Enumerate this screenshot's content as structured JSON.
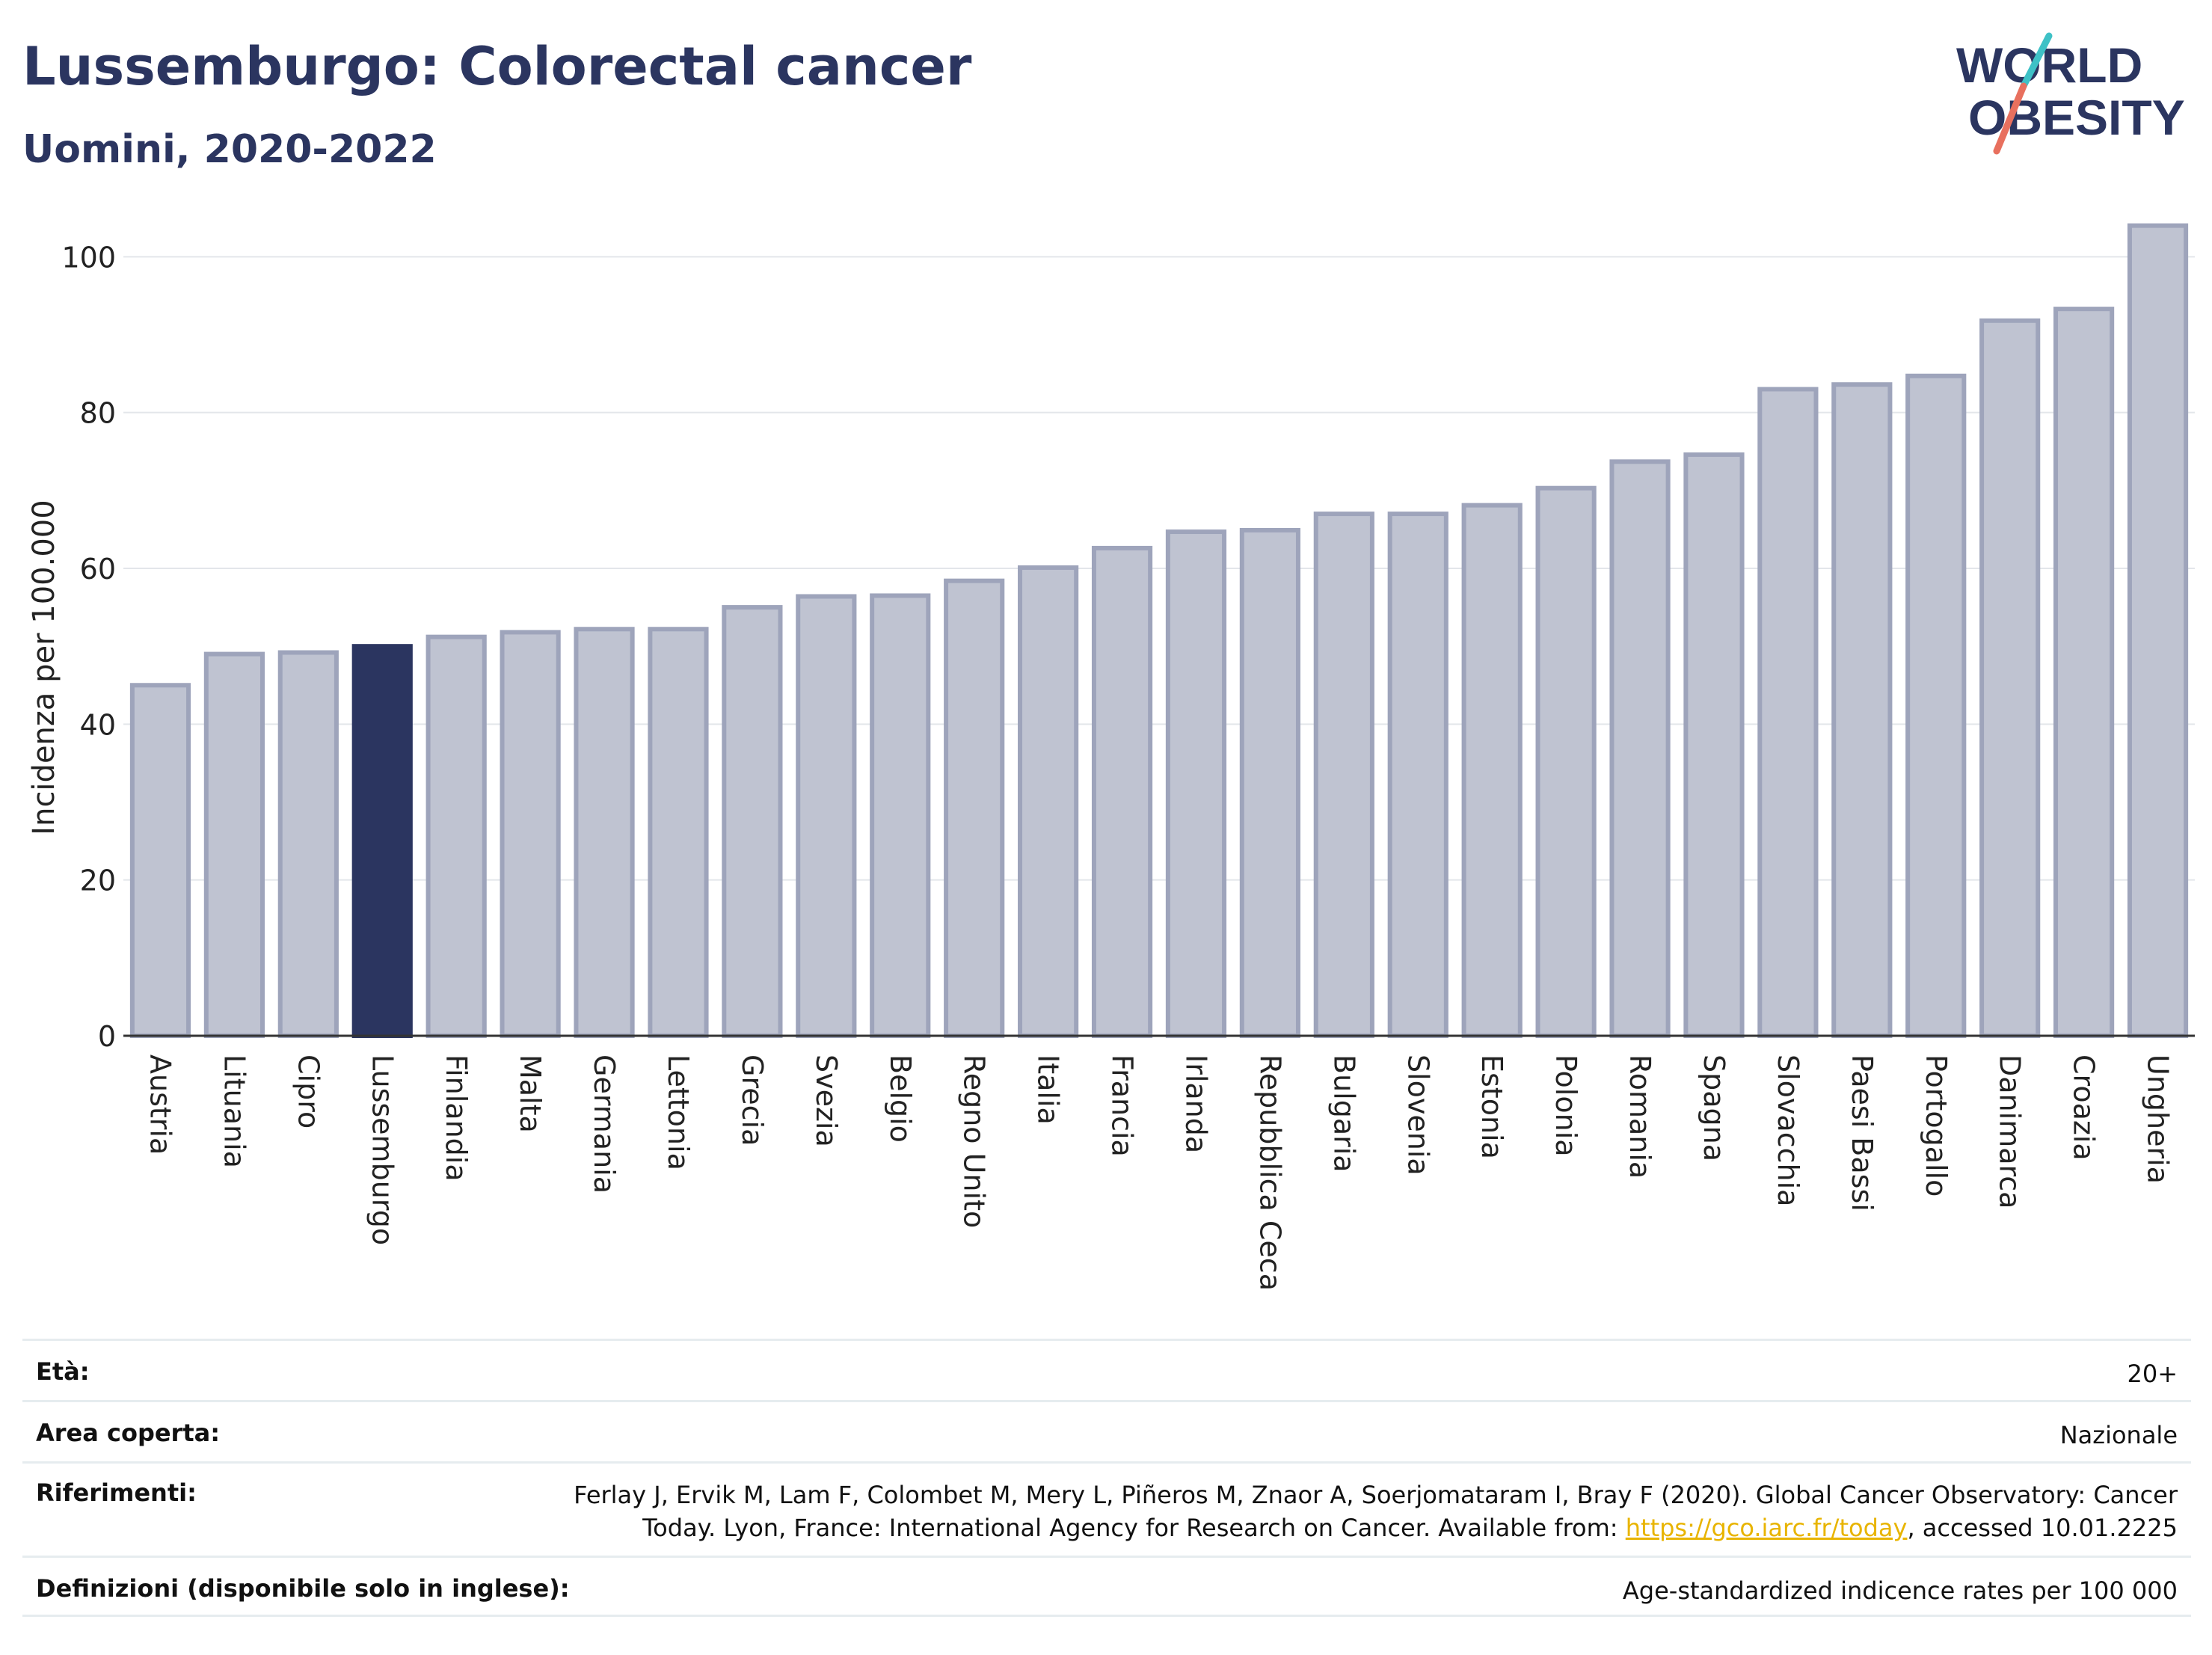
{
  "header": {
    "title": "Lussemburgo: Colorectal cancer",
    "subtitle": "Uomini, 2020-2022",
    "logo_line1": "WORLD",
    "logo_line2": "OBESITY"
  },
  "colors": {
    "bar_fill": "#bfc3d1",
    "bar_edge": "#9ea4bb",
    "highlight": "#2b3560",
    "title": "#2b3560",
    "link": "#e8b400",
    "logo_teal": "#3ec1c6",
    "logo_coral": "#e8705e"
  },
  "chart_data": {
    "type": "bar",
    "ylabel": "Incidenza per 100.000",
    "xlabel": "",
    "ylim": [
      0,
      108
    ],
    "yticks": [
      0,
      20,
      40,
      60,
      80,
      100
    ],
    "grid": true,
    "highlight": "Lussemburgo",
    "categories": [
      "Austria",
      "Lituania",
      "Cipro",
      "Lussemburgo",
      "Finlandia",
      "Malta",
      "Germania",
      "Lettonia",
      "Grecia",
      "Svezia",
      "Belgio",
      "Regno Unito",
      "Italia",
      "Francia",
      "Irlanda",
      "Repubblica Ceca",
      "Bulgaria",
      "Slovenia",
      "Estonia",
      "Polonia",
      "Romania",
      "Spagna",
      "Slovacchia",
      "Paesi Bassi",
      "Portogallo",
      "Danimarca",
      "Croazia",
      "Ungheria"
    ],
    "values": [
      45.0,
      49.0,
      49.2,
      50.0,
      51.2,
      51.8,
      52.2,
      52.2,
      55.0,
      56.4,
      56.5,
      58.4,
      60.1,
      62.6,
      64.7,
      64.9,
      67.0,
      67.0,
      68.1,
      70.3,
      73.7,
      74.6,
      83.0,
      83.6,
      84.7,
      91.8,
      93.3,
      104.0
    ]
  },
  "metadata": {
    "eta_label": "Età:",
    "eta_value": "20+",
    "area_label": "Area coperta:",
    "area_value": "Nazionale",
    "riferimenti_label": "Riferimenti:",
    "riferimenti_line1": "Ferlay J, Ervik M, Lam F, Colombet M, Mery L, Piñeros M, Znaor A, Soerjomataram I, Bray F (2020). Global Cancer Observatory: Cancer",
    "riferimenti_line2_pre": "Today. Lyon, France: International Agency for Research on Cancer. Available from: ",
    "riferimenti_link": "https://gco.iarc.fr/today",
    "riferimenti_line2_post": ", accessed 10.01.2225",
    "definizioni_label": "Definizioni (disponibile solo in inglese):",
    "definizioni_value": "Age-standardized indicence rates per 100 000"
  }
}
